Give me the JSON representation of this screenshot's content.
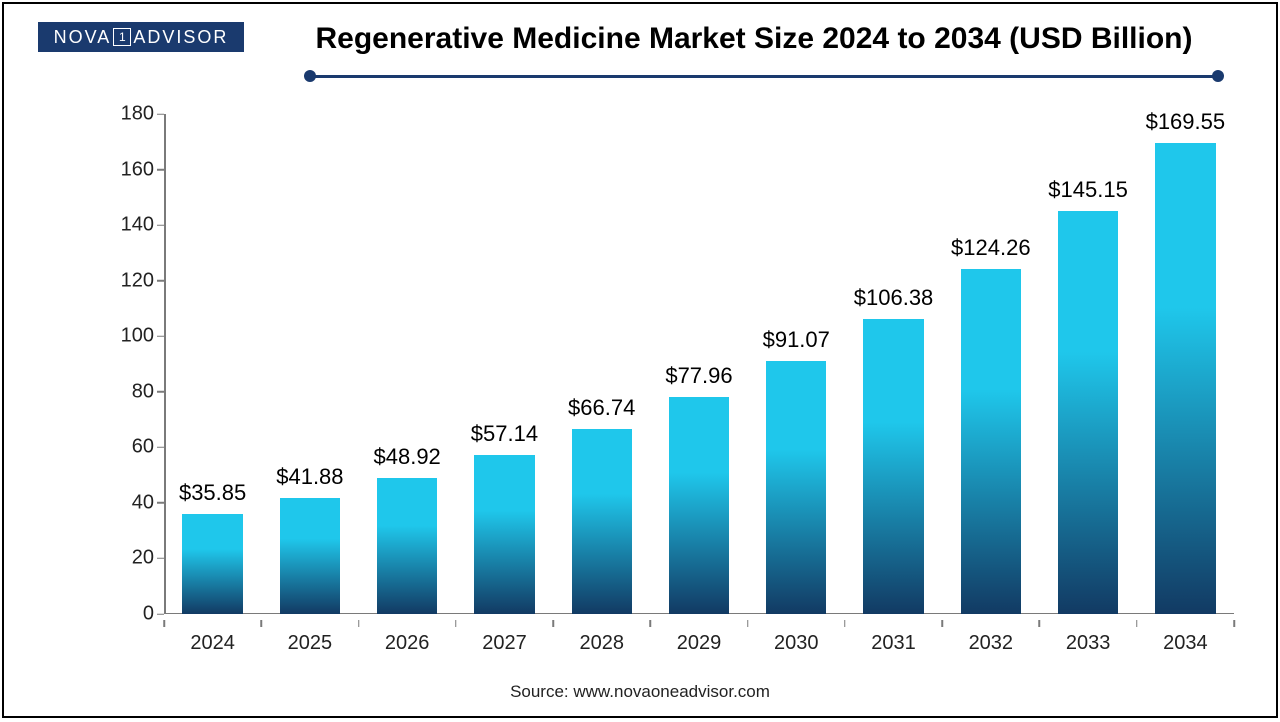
{
  "logo": {
    "text_left": "NOVA",
    "box_char": "1",
    "text_right": "ADVISOR",
    "bg_color": "#1a3a6e",
    "text_color": "#ffffff"
  },
  "title": {
    "text": "Regenerative Medicine Market Size 2024 to 2034 (USD Billion)",
    "fontsize": 30,
    "underline_color": "#1a3a6e"
  },
  "chart": {
    "type": "bar",
    "categories": [
      "2024",
      "2025",
      "2026",
      "2027",
      "2028",
      "2029",
      "2030",
      "2031",
      "2032",
      "2033",
      "2034"
    ],
    "values": [
      35.85,
      41.88,
      48.92,
      57.14,
      66.74,
      77.96,
      91.07,
      106.38,
      124.26,
      145.15,
      169.55
    ],
    "bar_labels": [
      "$35.85",
      "$41.88",
      "$48.92",
      "$57.14",
      "$66.74",
      "$77.96",
      "$91.07",
      "$106.38",
      "$124.26",
      "$145.15",
      "$169.55"
    ],
    "ylim": [
      0,
      180
    ],
    "ytick_step": 20,
    "yticks": [
      "0",
      "20",
      "40",
      "60",
      "80",
      "100",
      "120",
      "140",
      "160",
      "180"
    ],
    "bar_gradient_top": "#1fc7eb",
    "bar_gradient_bottom": "#123a63",
    "bar_width_ratio": 0.62,
    "background_color": "#ffffff",
    "axis_color": "#7a7a7a",
    "label_fontsize": 22,
    "tick_fontsize": 20,
    "value_prefix": "$"
  },
  "source": {
    "text": "Source: www.novaoneadvisor.com"
  }
}
